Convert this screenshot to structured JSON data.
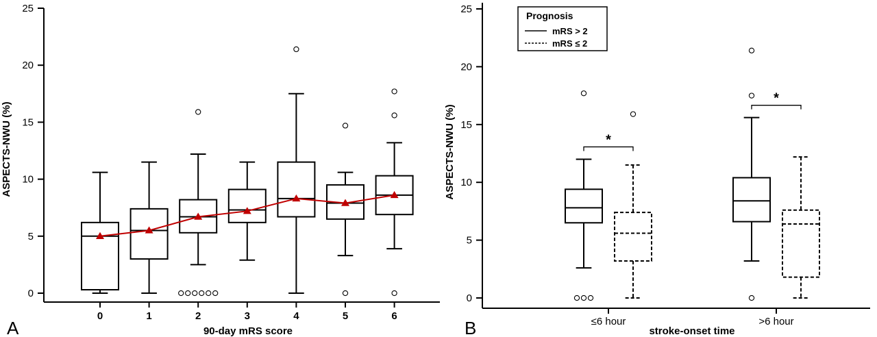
{
  "chart_data": [
    {
      "type": "box",
      "panel_label": "A",
      "xlabel": "90-day mRS score",
      "ylabel": "ASPECTS-NWU (%)",
      "ylim": [
        0,
        25
      ],
      "yticks": [
        "0",
        "5",
        "10",
        "15",
        "20",
        "25"
      ],
      "categories": [
        "0",
        "1",
        "2",
        "3",
        "4",
        "5",
        "6"
      ],
      "boxes": [
        {
          "category": "0",
          "whisker_low": 0,
          "q1": 0.3,
          "median": 5.0,
          "q3": 6.2,
          "whisker_high": 10.6,
          "outliers": []
        },
        {
          "category": "1",
          "whisker_low": 0,
          "q1": 3.0,
          "median": 5.5,
          "q3": 7.4,
          "whisker_high": 11.5,
          "outliers": []
        },
        {
          "category": "2",
          "whisker_low": 2.5,
          "q1": 5.3,
          "median": 6.7,
          "q3": 8.2,
          "whisker_high": 12.2,
          "outliers": [
            15.9,
            0,
            0,
            0,
            0,
            0,
            0
          ]
        },
        {
          "category": "3",
          "whisker_low": 2.9,
          "q1": 6.2,
          "median": 7.3,
          "q3": 9.1,
          "whisker_high": 11.5,
          "outliers": []
        },
        {
          "category": "4",
          "whisker_low": 0,
          "q1": 6.7,
          "median": 8.3,
          "q3": 11.5,
          "whisker_high": 17.5,
          "outliers": [
            21.4
          ]
        },
        {
          "category": "5",
          "whisker_low": 3.3,
          "q1": 6.5,
          "median": 7.9,
          "q3": 9.5,
          "whisker_high": 10.6,
          "outliers": [
            14.7,
            0
          ]
        },
        {
          "category": "6",
          "whisker_low": 3.9,
          "q1": 6.9,
          "median": 8.6,
          "q3": 10.3,
          "whisker_high": 13.2,
          "outliers": [
            17.7,
            15.6,
            0
          ]
        }
      ],
      "mean_series": {
        "values": [
          5.0,
          5.5,
          6.7,
          7.2,
          8.3,
          7.9,
          8.6
        ],
        "color": "#c00000",
        "marker": "triangle"
      }
    },
    {
      "type": "box",
      "panel_label": "B",
      "xlabel": "stroke-onset time",
      "ylabel": "ASPECTS-NWU (%)",
      "ylim": [
        0,
        25
      ],
      "yticks": [
        "0",
        "5",
        "10",
        "15",
        "20",
        "25"
      ],
      "categories": [
        "≤6 hour",
        ">6 hour"
      ],
      "legend": {
        "title": "Prognosis",
        "position": "top-left",
        "items": [
          {
            "label": "mRS > 2",
            "style": "solid"
          },
          {
            "label": "mRS ≤ 2",
            "style": "dashed"
          }
        ]
      },
      "groups": [
        {
          "category": "≤6 hour",
          "significance": "*",
          "boxes": [
            {
              "series": "mRS > 2",
              "whisker_low": 2.6,
              "q1": 6.5,
              "median": 7.8,
              "q3": 9.4,
              "whisker_high": 12.0,
              "outliers": [
                17.7,
                0,
                0,
                0
              ]
            },
            {
              "series": "mRS ≤ 2",
              "whisker_low": 0,
              "q1": 3.2,
              "median": 5.6,
              "q3": 7.4,
              "whisker_high": 11.5,
              "outliers": [
                15.9
              ]
            }
          ]
        },
        {
          "category": ">6 hour",
          "significance": "*",
          "boxes": [
            {
              "series": "mRS > 2",
              "whisker_low": 3.2,
              "q1": 6.6,
              "median": 8.4,
              "q3": 10.4,
              "whisker_high": 15.6,
              "outliers": [
                21.4,
                17.5,
                0
              ]
            },
            {
              "series": "mRS ≤ 2",
              "whisker_low": 0,
              "q1": 1.8,
              "median": 6.4,
              "q3": 7.6,
              "whisker_high": 12.2,
              "outliers": []
            }
          ]
        }
      ]
    }
  ]
}
